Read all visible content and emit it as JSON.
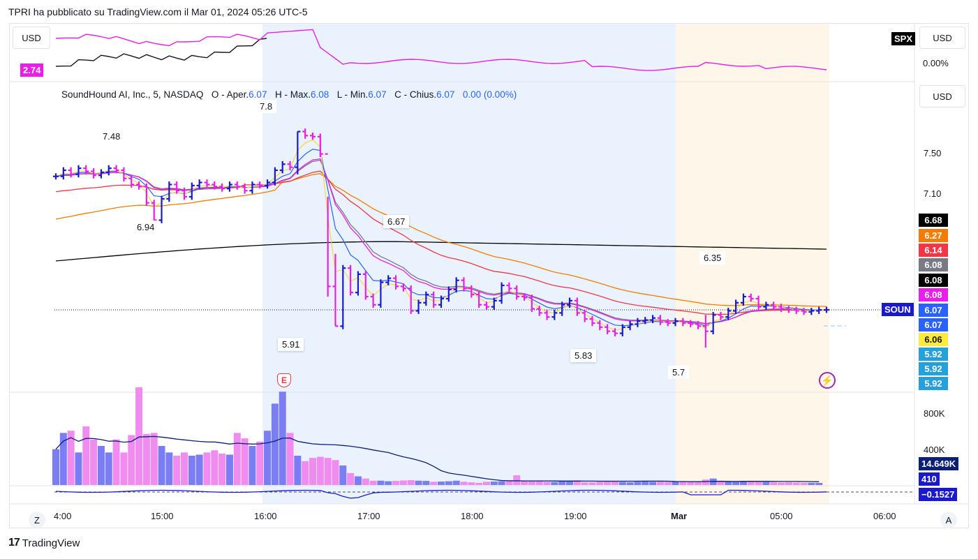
{
  "header": {
    "title": "TPRI ha pubblicato su TradingView.com il Mar 01, 2024 05:26 UTC-5"
  },
  "top_pane": {
    "currency_left": "USD",
    "currency_right": "USD",
    "symbol_badge": "SPX",
    "value_badge": "2.74",
    "percent_label": "0.00%"
  },
  "main_pane": {
    "currency_right": "USD",
    "legend": {
      "name": "SoundHound AI, Inc., 5, NASDAQ",
      "o_label": "O - Aper.",
      "o_value": "6.07",
      "h_label": "H - Max.",
      "h_value": "6.08",
      "l_label": "L - Min.",
      "l_value": "6.07",
      "c_label": "C - Chius.",
      "c_value": "6.07",
      "change": "0.00 (0.00%)"
    },
    "annotations": [
      "7.8",
      "7.48",
      "6.94",
      "6.67",
      "5.91",
      "5.83",
      "5.7",
      "6.35"
    ],
    "earnings_marker": "E",
    "flash_icon": "lightning-icon",
    "price_ticks": [
      "7.50",
      "7.10"
    ],
    "price_tags": [
      {
        "label": "6.68",
        "bg": "#000000",
        "fg": "#ffffff"
      },
      {
        "label": "6.27",
        "bg": "#f57c00",
        "fg": "#ffffff"
      },
      {
        "label": "6.14",
        "bg": "#f23645",
        "fg": "#ffffff"
      },
      {
        "label": "6.08",
        "bg": "#787b86",
        "fg": "#ffffff"
      },
      {
        "label": "6.08",
        "bg": "#000000",
        "fg": "#ffffff"
      },
      {
        "label": "6.08",
        "bg": "#e91ee8",
        "fg": "#ffffff"
      },
      {
        "label": "6.07",
        "bg": "#2962ff",
        "fg": "#ffffff"
      },
      {
        "label": "6.07",
        "bg": "#2962ff",
        "fg": "#ffffff"
      },
      {
        "label": "6.06",
        "bg": "#ffeb3b",
        "fg": "#131722"
      },
      {
        "label": "5.92",
        "bg": "#26a0da",
        "fg": "#ffffff"
      },
      {
        "label": "5.92",
        "bg": "#26a0da",
        "fg": "#ffffff"
      },
      {
        "label": "5.92",
        "bg": "#26a0da",
        "fg": "#ffffff"
      }
    ],
    "symbol_tag": "SOUN"
  },
  "volume_pane": {
    "ticks": [
      "800K",
      "400K"
    ],
    "value_tag": "14.649K",
    "value_tag2": "410"
  },
  "osc_pane": {
    "value_tag": "−0.1527"
  },
  "time_axis": {
    "labels": [
      "4:00",
      "15:00",
      "16:00",
      "17:00",
      "18:00",
      "19:00",
      "Mar",
      "05:00",
      "06:00"
    ],
    "left_button": "Z",
    "right_button": "A"
  },
  "footer": {
    "brand": "TradingView"
  },
  "colors": {
    "up_bar": "#1a1acc",
    "down_bar": "#e91ee8",
    "session_blue": "#eaf3fd",
    "session_orange": "#fff6ea",
    "ma_black": "#000000",
    "ma_orange": "#f57c00",
    "ma_red": "#f23645",
    "ma_gray": "#787b86",
    "ma_magenta": "#e91ee8",
    "ma_blue": "#2962ff",
    "ma_yellow": "#f5d742",
    "vol_up": "#7b7ef2",
    "vol_down": "#f08bef"
  },
  "chart_data": {
    "type": "line",
    "title": "SoundHound AI, Inc., 5, NASDAQ",
    "x_range": [
      "14:00",
      "06:00"
    ],
    "y_range": [
      5.55,
      7.95
    ],
    "ohlc_close": [
      7.38,
      7.44,
      7.4,
      7.46,
      7.43,
      7.39,
      7.42,
      7.46,
      7.44,
      7.36,
      7.3,
      7.28,
      7.12,
      6.95,
      7.16,
      7.3,
      7.24,
      7.18,
      7.29,
      7.32,
      7.3,
      7.28,
      7.26,
      7.3,
      7.28,
      7.24,
      7.3,
      7.29,
      7.32,
      7.44,
      7.5,
      7.47,
      7.82,
      7.78,
      7.77,
      7.6,
      6.3,
      5.91,
      6.48,
      6.24,
      6.42,
      6.2,
      6.12,
      6.34,
      6.38,
      6.3,
      6.28,
      6.06,
      6.14,
      6.22,
      6.12,
      6.18,
      6.27,
      6.36,
      6.28,
      6.22,
      6.12,
      6.1,
      6.16,
      6.31,
      6.28,
      6.2,
      6.19,
      6.08,
      6.04,
      6.0,
      6.04,
      6.12,
      6.16,
      6.04,
      5.98,
      5.94,
      5.9,
      5.86,
      5.84,
      5.9,
      5.93,
      5.96,
      5.97,
      5.99,
      5.95,
      5.94,
      5.96,
      5.94,
      5.93,
      5.91,
      5.86,
      6.02,
      6.0,
      6.06,
      6.14,
      6.2,
      6.18,
      6.1,
      6.12,
      6.1,
      6.08,
      6.07,
      6.06,
      6.05,
      6.06,
      6.07,
      6.07
    ],
    "moving_averages": [
      {
        "color": "black",
        "last": 6.68
      },
      {
        "color": "orange",
        "last": 6.27
      },
      {
        "color": "red",
        "last": 6.14
      },
      {
        "color": "gray",
        "last": 6.08
      },
      {
        "color": "magenta",
        "last": 6.08
      },
      {
        "color": "blue",
        "last": 6.07
      },
      {
        "color": "yellow",
        "last": 6.06
      }
    ],
    "volume_range": [
      0,
      900000
    ]
  }
}
